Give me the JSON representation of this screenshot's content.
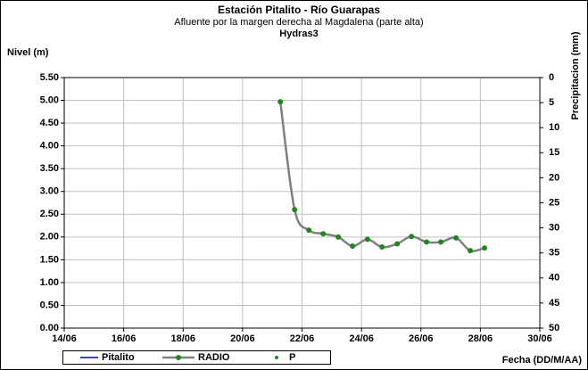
{
  "chart_data": {
    "type": "line",
    "title": "Estación Pitalito  - Río Guarapas",
    "subtitle": "Afluente por la margen derecha al Magdalena (parte alta)",
    "subtitle2": "Hydras3",
    "y_label": "Nivel (m)",
    "y2_label": "Precipitacion (mm)",
    "x_label": "Fecha (DD/M/AA)",
    "x": [
      21.27,
      21.75,
      22.23,
      22.71,
      23.22,
      23.7,
      24.2,
      24.69,
      25.2,
      25.68,
      26.19,
      26.67,
      27.18,
      27.66,
      28.14
    ],
    "series": [
      {
        "name": "Pitalito",
        "color": "#0000cc",
        "values": [
          null,
          null,
          null,
          null,
          null,
          null,
          null,
          null,
          null,
          null,
          null,
          null,
          null,
          null,
          null
        ]
      },
      {
        "name": "RADIO",
        "color": "#808080",
        "marker_color": "#1a8a1a",
        "values": [
          4.97,
          2.6,
          2.15,
          2.07,
          2.0,
          1.8,
          1.95,
          1.78,
          1.85,
          2.01,
          1.89,
          1.89,
          1.98,
          1.7,
          1.76
        ]
      },
      {
        "name": "P",
        "color": "#1a8a1a",
        "axis": "y2",
        "values": [
          null,
          null,
          null,
          null,
          null,
          null,
          null,
          null,
          null,
          null,
          null,
          null,
          null,
          null,
          null
        ]
      }
    ],
    "xlim": [
      14,
      30
    ],
    "xticks": [
      {
        "value": 14,
        "label": "14/06"
      },
      {
        "value": 16,
        "label": "16/06"
      },
      {
        "value": 18,
        "label": "18/06"
      },
      {
        "value": 20,
        "label": "20/06"
      },
      {
        "value": 22,
        "label": "22/06"
      },
      {
        "value": 24,
        "label": "24/06"
      },
      {
        "value": 26,
        "label": "26/06"
      },
      {
        "value": 28,
        "label": "28/06"
      },
      {
        "value": 30,
        "label": "30/06"
      }
    ],
    "ylim": [
      0,
      5.5
    ],
    "yticks": [
      {
        "value": 0,
        "label": "0.00"
      },
      {
        "value": 0.5,
        "label": "0.50"
      },
      {
        "value": 1,
        "label": "1.00"
      },
      {
        "value": 1.5,
        "label": "1.50"
      },
      {
        "value": 2,
        "label": "2.00"
      },
      {
        "value": 2.5,
        "label": "2.50"
      },
      {
        "value": 3,
        "label": "3.00"
      },
      {
        "value": 3.5,
        "label": "3.50"
      },
      {
        "value": 4,
        "label": "4.00"
      },
      {
        "value": 4.5,
        "label": "4.50"
      },
      {
        "value": 5,
        "label": "5.00"
      },
      {
        "value": 5.5,
        "label": "5.50"
      }
    ],
    "y2lim": [
      0,
      50
    ],
    "y2_inverted": true,
    "y2ticks": [
      0,
      5,
      10,
      15,
      20,
      25,
      30,
      35,
      40,
      45,
      50
    ],
    "grid": true
  }
}
